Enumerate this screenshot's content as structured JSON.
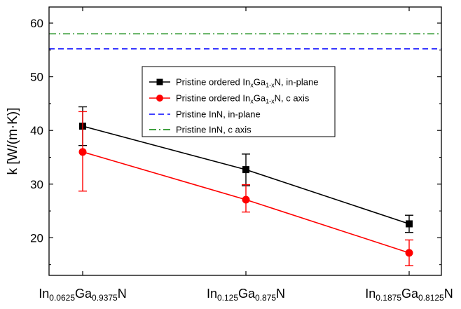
{
  "chart_data": {
    "type": "line",
    "ylabel": "k [W/(m·K)]",
    "ylim": [
      13,
      63
    ],
    "yticks": [
      20,
      30,
      40,
      50,
      60
    ],
    "grid": false,
    "legend_position": "inside-right",
    "categories": [
      {
        "base1": "In",
        "sub1": "0.0625",
        "base2": "Ga",
        "sub2": "0.9375",
        "base3": "N"
      },
      {
        "base1": "In",
        "sub1": "0.125",
        "base2": "Ga",
        "sub2": "0.875",
        "base3": "N"
      },
      {
        "base1": "In",
        "sub1": "0.1875",
        "base2": "Ga",
        "sub2": "0.8125",
        "base3": "N"
      }
    ],
    "series": [
      {
        "name_parts": [
          "Pristine ordered In",
          "x",
          "Ga",
          "1-x",
          "N, in-plane"
        ],
        "color": "#000000",
        "marker": "square",
        "values": [
          40.8,
          32.7,
          22.6
        ],
        "err_lower": [
          3.6,
          3.0,
          1.6
        ],
        "err_upper": [
          3.6,
          2.9,
          1.6
        ]
      },
      {
        "name_parts": [
          "Pristine ordered In",
          "x",
          "Ga",
          "1-x",
          "N, c axis"
        ],
        "color": "#ff0000",
        "marker": "circle",
        "values": [
          36.0,
          27.1,
          17.2
        ],
        "err_lower": [
          7.3,
          2.3,
          2.4
        ],
        "err_upper": [
          7.5,
          2.8,
          2.4
        ]
      }
    ],
    "reference_lines": [
      {
        "name": "Pristine InN, in-plane",
        "value": 55.2,
        "color": "#0000ff",
        "style": "dashed"
      },
      {
        "name": "Pristine InN, c axis",
        "value": 58.0,
        "color": "#008000",
        "style": "dashdot"
      }
    ]
  }
}
